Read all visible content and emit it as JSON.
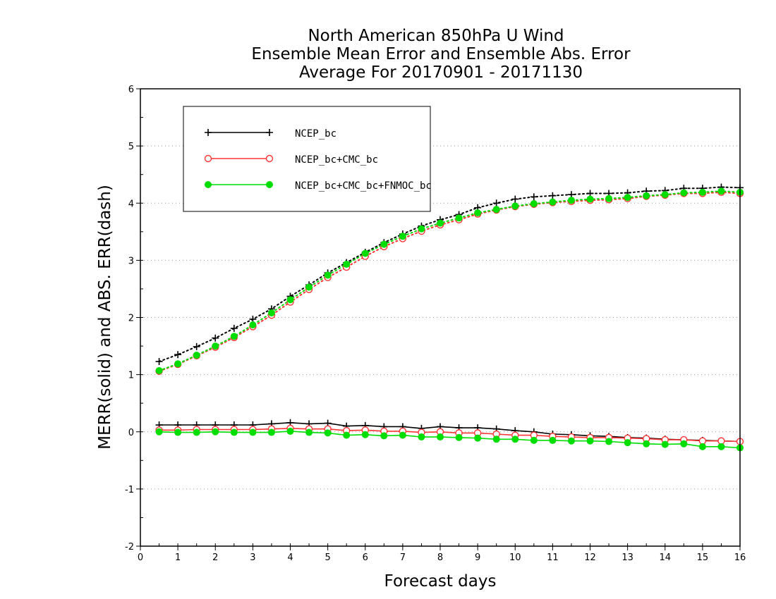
{
  "chart_data": {
    "type": "line",
    "title": [
      "North American 850hPa U Wind",
      "Ensemble Mean Error and Ensemble Abs. Error",
      "Average For 20170901 - 20171130"
    ],
    "xlabel": "Forecast days",
    "ylabel": "MERR(solid) and ABS. ERR(dash)",
    "xlim": [
      0,
      16
    ],
    "ylim": [
      -2,
      6
    ],
    "xticks": [
      0,
      1,
      2,
      3,
      4,
      5,
      6,
      7,
      8,
      9,
      10,
      11,
      12,
      13,
      14,
      15,
      16
    ],
    "yticks": [
      -2,
      -1,
      0,
      1,
      2,
      3,
      4,
      5,
      6
    ],
    "ytick_labels": [
      "-2",
      "-1",
      "0",
      "1",
      "2",
      "3",
      "4",
      "5",
      "6"
    ],
    "grid": "horizontal dotted",
    "legend_position": "top-left",
    "x": [
      0.5,
      1.0,
      1.5,
      2.0,
      2.5,
      3.0,
      3.5,
      4.0,
      4.5,
      5.0,
      5.5,
      6.0,
      6.5,
      7.0,
      7.5,
      8.0,
      8.5,
      9.0,
      9.5,
      10.0,
      10.5,
      11.0,
      11.5,
      12.0,
      12.5,
      13.0,
      13.5,
      14.0,
      14.5,
      15.0,
      15.5,
      16.0
    ],
    "series": [
      {
        "name": "NCEP_bc",
        "color": "#000000",
        "marker": "plus",
        "merr": [
          0.12,
          0.12,
          0.12,
          0.12,
          0.12,
          0.12,
          0.14,
          0.16,
          0.14,
          0.15,
          0.1,
          0.11,
          0.09,
          0.09,
          0.06,
          0.09,
          0.07,
          0.07,
          0.05,
          0.02,
          0.0,
          -0.04,
          -0.05,
          -0.07,
          -0.08,
          -0.1,
          -0.11,
          -0.13,
          -0.14,
          -0.15,
          -0.16,
          -0.17
        ],
        "abs_err": [
          1.23,
          1.35,
          1.49,
          1.64,
          1.81,
          1.97,
          2.15,
          2.37,
          2.57,
          2.78,
          2.96,
          3.14,
          3.31,
          3.46,
          3.6,
          3.71,
          3.8,
          3.92,
          4.0,
          4.07,
          4.11,
          4.13,
          4.15,
          4.17,
          4.17,
          4.18,
          4.21,
          4.22,
          4.26,
          4.26,
          4.28,
          4.27
        ]
      },
      {
        "name": "NCEP_bc+CMC_bc",
        "color": "#ff3333",
        "marker": "open-circle",
        "merr": [
          0.03,
          0.03,
          0.04,
          0.04,
          0.04,
          0.04,
          0.05,
          0.06,
          0.05,
          0.05,
          0.02,
          0.03,
          0.01,
          0.01,
          -0.01,
          0.0,
          -0.02,
          -0.02,
          -0.04,
          -0.06,
          -0.06,
          -0.08,
          -0.09,
          -0.1,
          -0.1,
          -0.11,
          -0.12,
          -0.14,
          -0.14,
          -0.16,
          -0.16,
          -0.17
        ],
        "abs_err": [
          1.06,
          1.18,
          1.33,
          1.48,
          1.65,
          1.84,
          2.04,
          2.27,
          2.49,
          2.7,
          2.88,
          3.07,
          3.24,
          3.38,
          3.51,
          3.62,
          3.71,
          3.81,
          3.88,
          3.94,
          3.98,
          4.01,
          4.03,
          4.05,
          4.06,
          4.08,
          4.12,
          4.14,
          4.17,
          4.17,
          4.19,
          4.17
        ]
      },
      {
        "name": "NCEP_bc+CMC_bc+FNMOC_bc",
        "color": "#00dd00",
        "marker": "filled-circle",
        "merr": [
          0.0,
          -0.01,
          -0.01,
          0.0,
          -0.01,
          -0.01,
          -0.01,
          0.01,
          -0.01,
          -0.02,
          -0.06,
          -0.05,
          -0.07,
          -0.06,
          -0.09,
          -0.09,
          -0.1,
          -0.11,
          -0.13,
          -0.13,
          -0.15,
          -0.15,
          -0.16,
          -0.16,
          -0.17,
          -0.19,
          -0.21,
          -0.22,
          -0.21,
          -0.26,
          -0.26,
          -0.28
        ],
        "abs_err": [
          1.07,
          1.19,
          1.34,
          1.5,
          1.67,
          1.87,
          2.08,
          2.31,
          2.53,
          2.74,
          2.93,
          3.12,
          3.28,
          3.42,
          3.55,
          3.65,
          3.74,
          3.83,
          3.89,
          3.95,
          3.99,
          4.02,
          4.05,
          4.07,
          4.08,
          4.1,
          4.13,
          4.15,
          4.18,
          4.19,
          4.21,
          4.19
        ]
      }
    ]
  }
}
